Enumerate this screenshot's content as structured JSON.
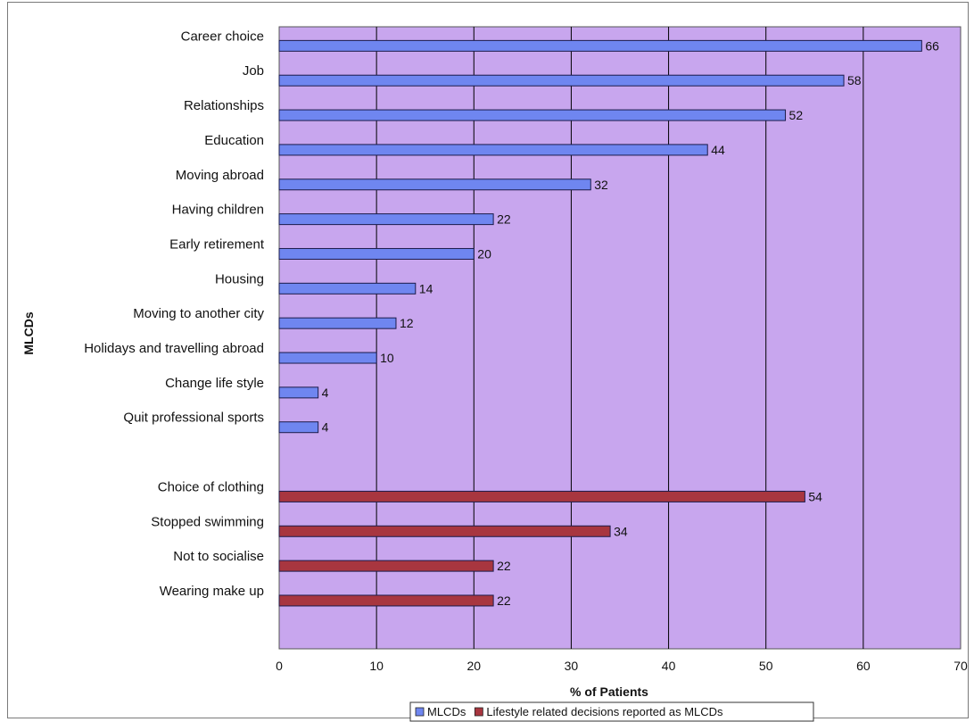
{
  "chart_data": {
    "type": "bar",
    "orientation": "horizontal",
    "xlabel": "% of Patients",
    "ylabel": "MLCDs",
    "xlim": [
      0,
      70
    ],
    "xticks": [
      0,
      10,
      20,
      30,
      40,
      50,
      60,
      70
    ],
    "grid": true,
    "legend_position": "bottom",
    "series": [
      {
        "name": "MLCDs",
        "color": "#6f86f0",
        "categories": [
          "Career choice",
          "Job",
          "Relationships",
          "Education",
          "Moving abroad",
          "Having children",
          "Early retirement",
          "Housing",
          "Moving to another city",
          "Holidays and travelling abroad",
          "Change life style",
          "Quit professional sports"
        ],
        "values": [
          66,
          58,
          52,
          44,
          32,
          22,
          20,
          14,
          12,
          10,
          4,
          4
        ]
      },
      {
        "name": "Lifestyle related decisions reported as MLCDs",
        "color": "#a8363f",
        "categories": [
          "Choice of clothing",
          "Stopped swimming",
          "Not to socialise",
          "Wearing make up"
        ],
        "values": [
          54,
          34,
          22,
          22
        ]
      }
    ],
    "colors": {
      "plot_background": "#c8a6ee",
      "gridline": "#000000"
    }
  }
}
